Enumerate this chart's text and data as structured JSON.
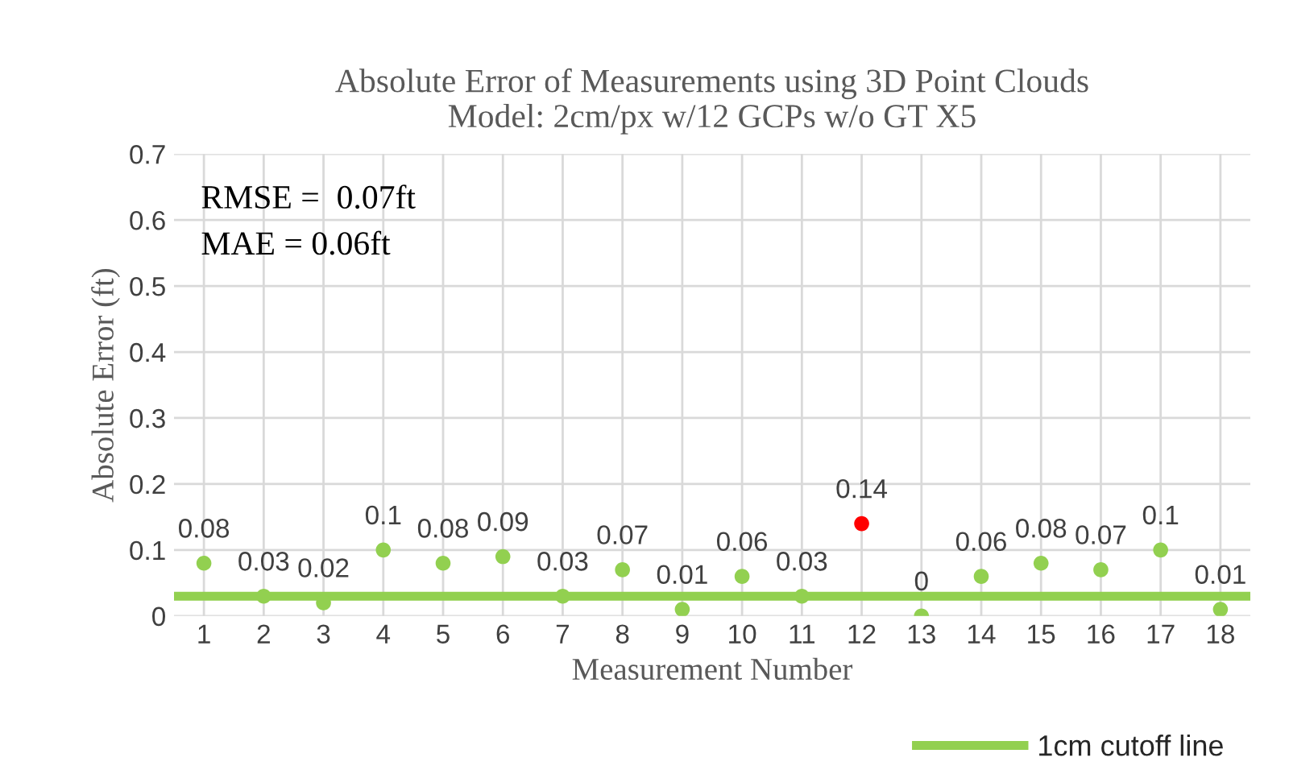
{
  "chart_data": {
    "type": "scatter",
    "title": "Absolute Error of Measurements using 3D Point Clouds\nModel: 2cm/px w/12 GCPs w/o GT X5",
    "xlabel": "Measurement Number",
    "ylabel": "Absolute Error (ft)",
    "categories": [
      "1",
      "2",
      "3",
      "4",
      "5",
      "6",
      "7",
      "8",
      "9",
      "10",
      "11",
      "12",
      "13",
      "14",
      "15",
      "16",
      "17",
      "18"
    ],
    "values": [
      0.08,
      0.03,
      0.02,
      0.1,
      0.08,
      0.09,
      0.03,
      0.07,
      0.01,
      0.06,
      0.03,
      0.14,
      0,
      0.06,
      0.08,
      0.07,
      0.1,
      0.01
    ],
    "colors": [
      "#92d050",
      "#92d050",
      "#92d050",
      "#92d050",
      "#92d050",
      "#92d050",
      "#92d050",
      "#92d050",
      "#92d050",
      "#92d050",
      "#92d050",
      "#ff0000",
      "#92d050",
      "#92d050",
      "#92d050",
      "#92d050",
      "#92d050",
      "#92d050"
    ],
    "marker": "circle",
    "data_labels": true,
    "ylim": [
      0,
      0.7
    ],
    "yticks": [
      {
        "value": 0,
        "label": "0"
      },
      0.1,
      0.2,
      0.3,
      0.4,
      0.5,
      0.6,
      0.7
    ],
    "grid": true,
    "ref_lines": [
      {
        "axis": "y",
        "value": 0.03,
        "label": "1cm cutoff line",
        "color": "#92d050",
        "line_style": "solid"
      }
    ],
    "legend": "bottom right",
    "annotations": [
      "RMSE =  0.07ft",
      "MAE = 0.06ft"
    ]
  }
}
